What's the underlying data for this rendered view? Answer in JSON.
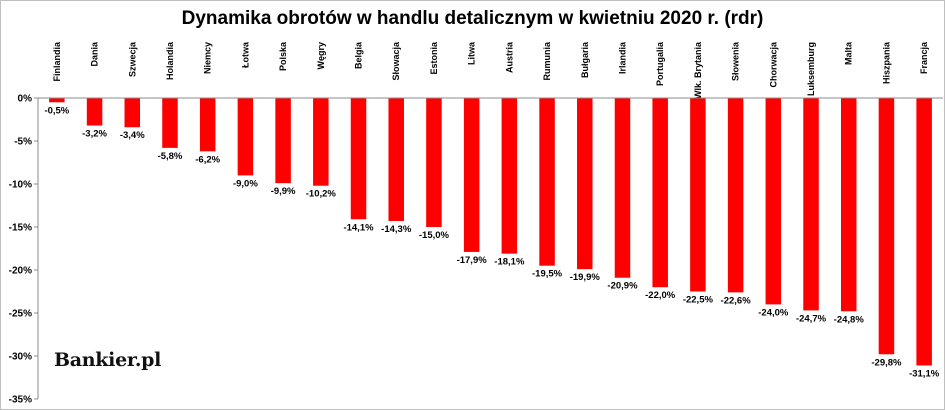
{
  "chart_data": {
    "type": "bar",
    "title": "Dynamika obrotów w handlu detalicznym w kwietniu 2020 r. (rdr)",
    "xlabel": "",
    "ylabel": "",
    "ylim": [
      -35,
      0
    ],
    "yticks": [
      "0%",
      "-5%",
      "-10%",
      "-15%",
      "-20%",
      "-25%",
      "-30%",
      "-35%"
    ],
    "ytick_values": [
      0,
      -5,
      -10,
      -15,
      -20,
      -25,
      -30,
      -35
    ],
    "categories": [
      "Finlandia",
      "Dania",
      "Szwecja",
      "Holandia",
      "Niemcy",
      "Łotwa",
      "Polska",
      "Węgry",
      "Belgia",
      "Słowacja",
      "Estonia",
      "Litwa",
      "Austria",
      "Rumunia",
      "Bułgaria",
      "Irlandia",
      "Portugalia",
      "Wlk. Brytania",
      "Słowenia",
      "Chorwacja",
      "Luksemburg",
      "Malta",
      "Hiszpania",
      "Francja"
    ],
    "values": [
      -0.5,
      -3.2,
      -3.4,
      -5.8,
      -6.2,
      -9.0,
      -9.9,
      -10.2,
      -14.1,
      -14.3,
      -15.0,
      -17.9,
      -18.1,
      -19.5,
      -19.9,
      -20.9,
      -22.0,
      -22.5,
      -22.6,
      -24.0,
      -24.7,
      -24.8,
      -29.8,
      -31.1
    ],
    "data_labels": [
      "-0,5%",
      "-3,2%",
      "-3,4%",
      "-5,8%",
      "-6,2%",
      "-9,0%",
      "-9,9%",
      "-10,2%",
      "-14,1%",
      "-14,3%",
      "-15,0%",
      "-17,9%",
      "-18,1%",
      "-19,5%",
      "-19,9%",
      "-20,9%",
      "-22,0%",
      "-22,5%",
      "-22,6%",
      "-24,0%",
      "-24,7%",
      "-24,8%",
      "-29,8%",
      "-31,1%"
    ],
    "bar_color": "#ff0000",
    "grid": false,
    "legend": "none"
  },
  "logo_text": "Bankier.pl"
}
